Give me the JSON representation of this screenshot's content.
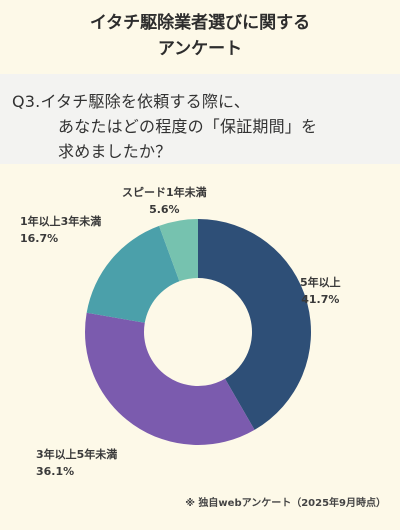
{
  "header": {
    "line1": "イタチ駆除業者選びに関する",
    "line2": "アンケート"
  },
  "question": {
    "line1": "Q3.イタチ駆除を依頼する際に、",
    "line2": "あなたはどの程度の「保証期間」を",
    "line3": "求めましたか？"
  },
  "chart_data": {
    "type": "pie",
    "donut": true,
    "title": "",
    "slices": [
      {
        "label": "5年以上",
        "value": 41.7,
        "value_text": "41.7%",
        "color": "#2e4f77"
      },
      {
        "label": "3年以上5年未満",
        "value": 36.1,
        "value_text": "36.1%",
        "color": "#7b5bae"
      },
      {
        "label": "1年以上3年未満",
        "value": 16.7,
        "value_text": "16.7%",
        "color": "#4ba0aa"
      },
      {
        "label": "スピード1年未満",
        "value": 5.6,
        "value_text": "5.6%",
        "color": "#76c2af"
      }
    ]
  },
  "footnote": "※ 独自webアンケート（2025年9月時点）"
}
